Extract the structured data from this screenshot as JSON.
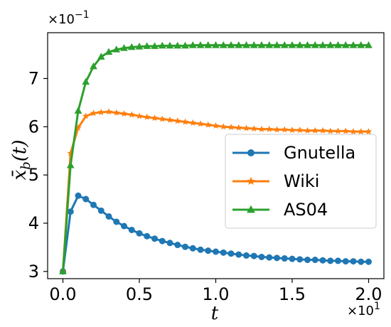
{
  "chart_data": {
    "type": "line",
    "x": [
      0,
      0.05,
      0.1,
      0.15,
      0.2,
      0.25,
      0.3,
      0.35,
      0.4,
      0.45,
      0.5,
      0.55,
      0.6,
      0.65,
      0.7,
      0.75,
      0.8,
      0.85,
      0.9,
      0.95,
      1.0,
      1.05,
      1.1,
      1.15,
      1.2,
      1.25,
      1.3,
      1.35,
      1.4,
      1.45,
      1.5,
      1.55,
      1.6,
      1.65,
      1.7,
      1.75,
      1.8,
      1.85,
      1.9,
      1.95,
      2.0
    ],
    "series": [
      {
        "name": "Gnutella",
        "color": "#1f77b4",
        "marker": "circle",
        "values": [
          3.0,
          4.24,
          4.57,
          4.5,
          4.38,
          4.26,
          4.14,
          4.03,
          3.94,
          3.86,
          3.79,
          3.73,
          3.68,
          3.63,
          3.59,
          3.55,
          3.51,
          3.48,
          3.45,
          3.43,
          3.41,
          3.39,
          3.37,
          3.35,
          3.33,
          3.32,
          3.3,
          3.29,
          3.28,
          3.27,
          3.26,
          3.25,
          3.24,
          3.24,
          3.23,
          3.22,
          3.22,
          3.21,
          3.21,
          3.2,
          3.2
        ]
      },
      {
        "name": "Wiki",
        "color": "#ff7f0e",
        "marker": "star",
        "values": [
          3.0,
          5.45,
          5.98,
          6.22,
          6.28,
          6.3,
          6.31,
          6.29,
          6.27,
          6.25,
          6.22,
          6.2,
          6.18,
          6.16,
          6.14,
          6.12,
          6.1,
          6.08,
          6.06,
          6.04,
          6.02,
          6.0,
          5.99,
          5.98,
          5.97,
          5.96,
          5.95,
          5.95,
          5.94,
          5.94,
          5.93,
          5.93,
          5.92,
          5.92,
          5.92,
          5.91,
          5.91,
          5.91,
          5.9,
          5.9,
          5.9
        ]
      },
      {
        "name": "AS04",
        "color": "#2ca02c",
        "marker": "triangle",
        "values": [
          3.0,
          5.2,
          6.33,
          6.93,
          7.25,
          7.45,
          7.55,
          7.6,
          7.63,
          7.65,
          7.66,
          7.67,
          7.67,
          7.68,
          7.68,
          7.68,
          7.68,
          7.69,
          7.69,
          7.69,
          7.69,
          7.69,
          7.69,
          7.69,
          7.69,
          7.69,
          7.69,
          7.69,
          7.69,
          7.69,
          7.69,
          7.69,
          7.69,
          7.69,
          7.69,
          7.69,
          7.69,
          7.69,
          7.69,
          7.69,
          7.69
        ]
      }
    ],
    "xticks": [
      "0.0",
      "0.5",
      "1.0",
      "1.5",
      "2.0"
    ],
    "xtick_values": [
      0,
      0.5,
      1.0,
      1.5,
      2.0
    ],
    "yticks": [
      "3",
      "4",
      "5",
      "6",
      "7"
    ],
    "ytick_values": [
      3,
      4,
      5,
      6,
      7
    ],
    "xlim": [
      -0.1,
      2.1
    ],
    "ylim": [
      2.85,
      7.95
    ],
    "xlabel": "t",
    "ylabel": "x̄b(t)",
    "x_exponent": "×10",
    "x_exponent_power": "1",
    "y_exponent": "×10",
    "y_exponent_power": "−1",
    "grid": false,
    "legend_position": "center-right"
  }
}
